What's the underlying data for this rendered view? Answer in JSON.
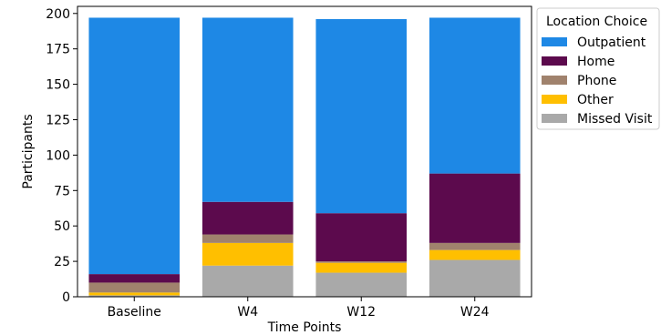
{
  "chart_data": {
    "type": "bar",
    "stacked": true,
    "title": "",
    "xlabel": "Time Points",
    "ylabel": "Participants",
    "categories": [
      "Baseline",
      "W4",
      "W12",
      "W24"
    ],
    "ylim": [
      0,
      205
    ],
    "yticks": [
      0,
      25,
      50,
      75,
      100,
      125,
      150,
      175,
      200
    ],
    "series": [
      {
        "name": "Missed Visit",
        "color": "#a9a9a9",
        "values": [
          1,
          22,
          17,
          26
        ]
      },
      {
        "name": "Other",
        "color": "#ffbf00",
        "values": [
          2,
          16,
          7,
          7
        ]
      },
      {
        "name": "Phone",
        "color": "#a0826d",
        "values": [
          7,
          6,
          1,
          5
        ]
      },
      {
        "name": "Home",
        "color": "#5c0a4d",
        "values": [
          6,
          23,
          34,
          49
        ]
      },
      {
        "name": "Outpatient",
        "color": "#1e88e5",
        "values": [
          181,
          130,
          137,
          110
        ]
      }
    ],
    "legend": {
      "title": "Location Choice",
      "placement": "outside-right-top",
      "order": [
        "Outpatient",
        "Home",
        "Phone",
        "Other",
        "Missed Visit"
      ]
    },
    "grid": false
  }
}
